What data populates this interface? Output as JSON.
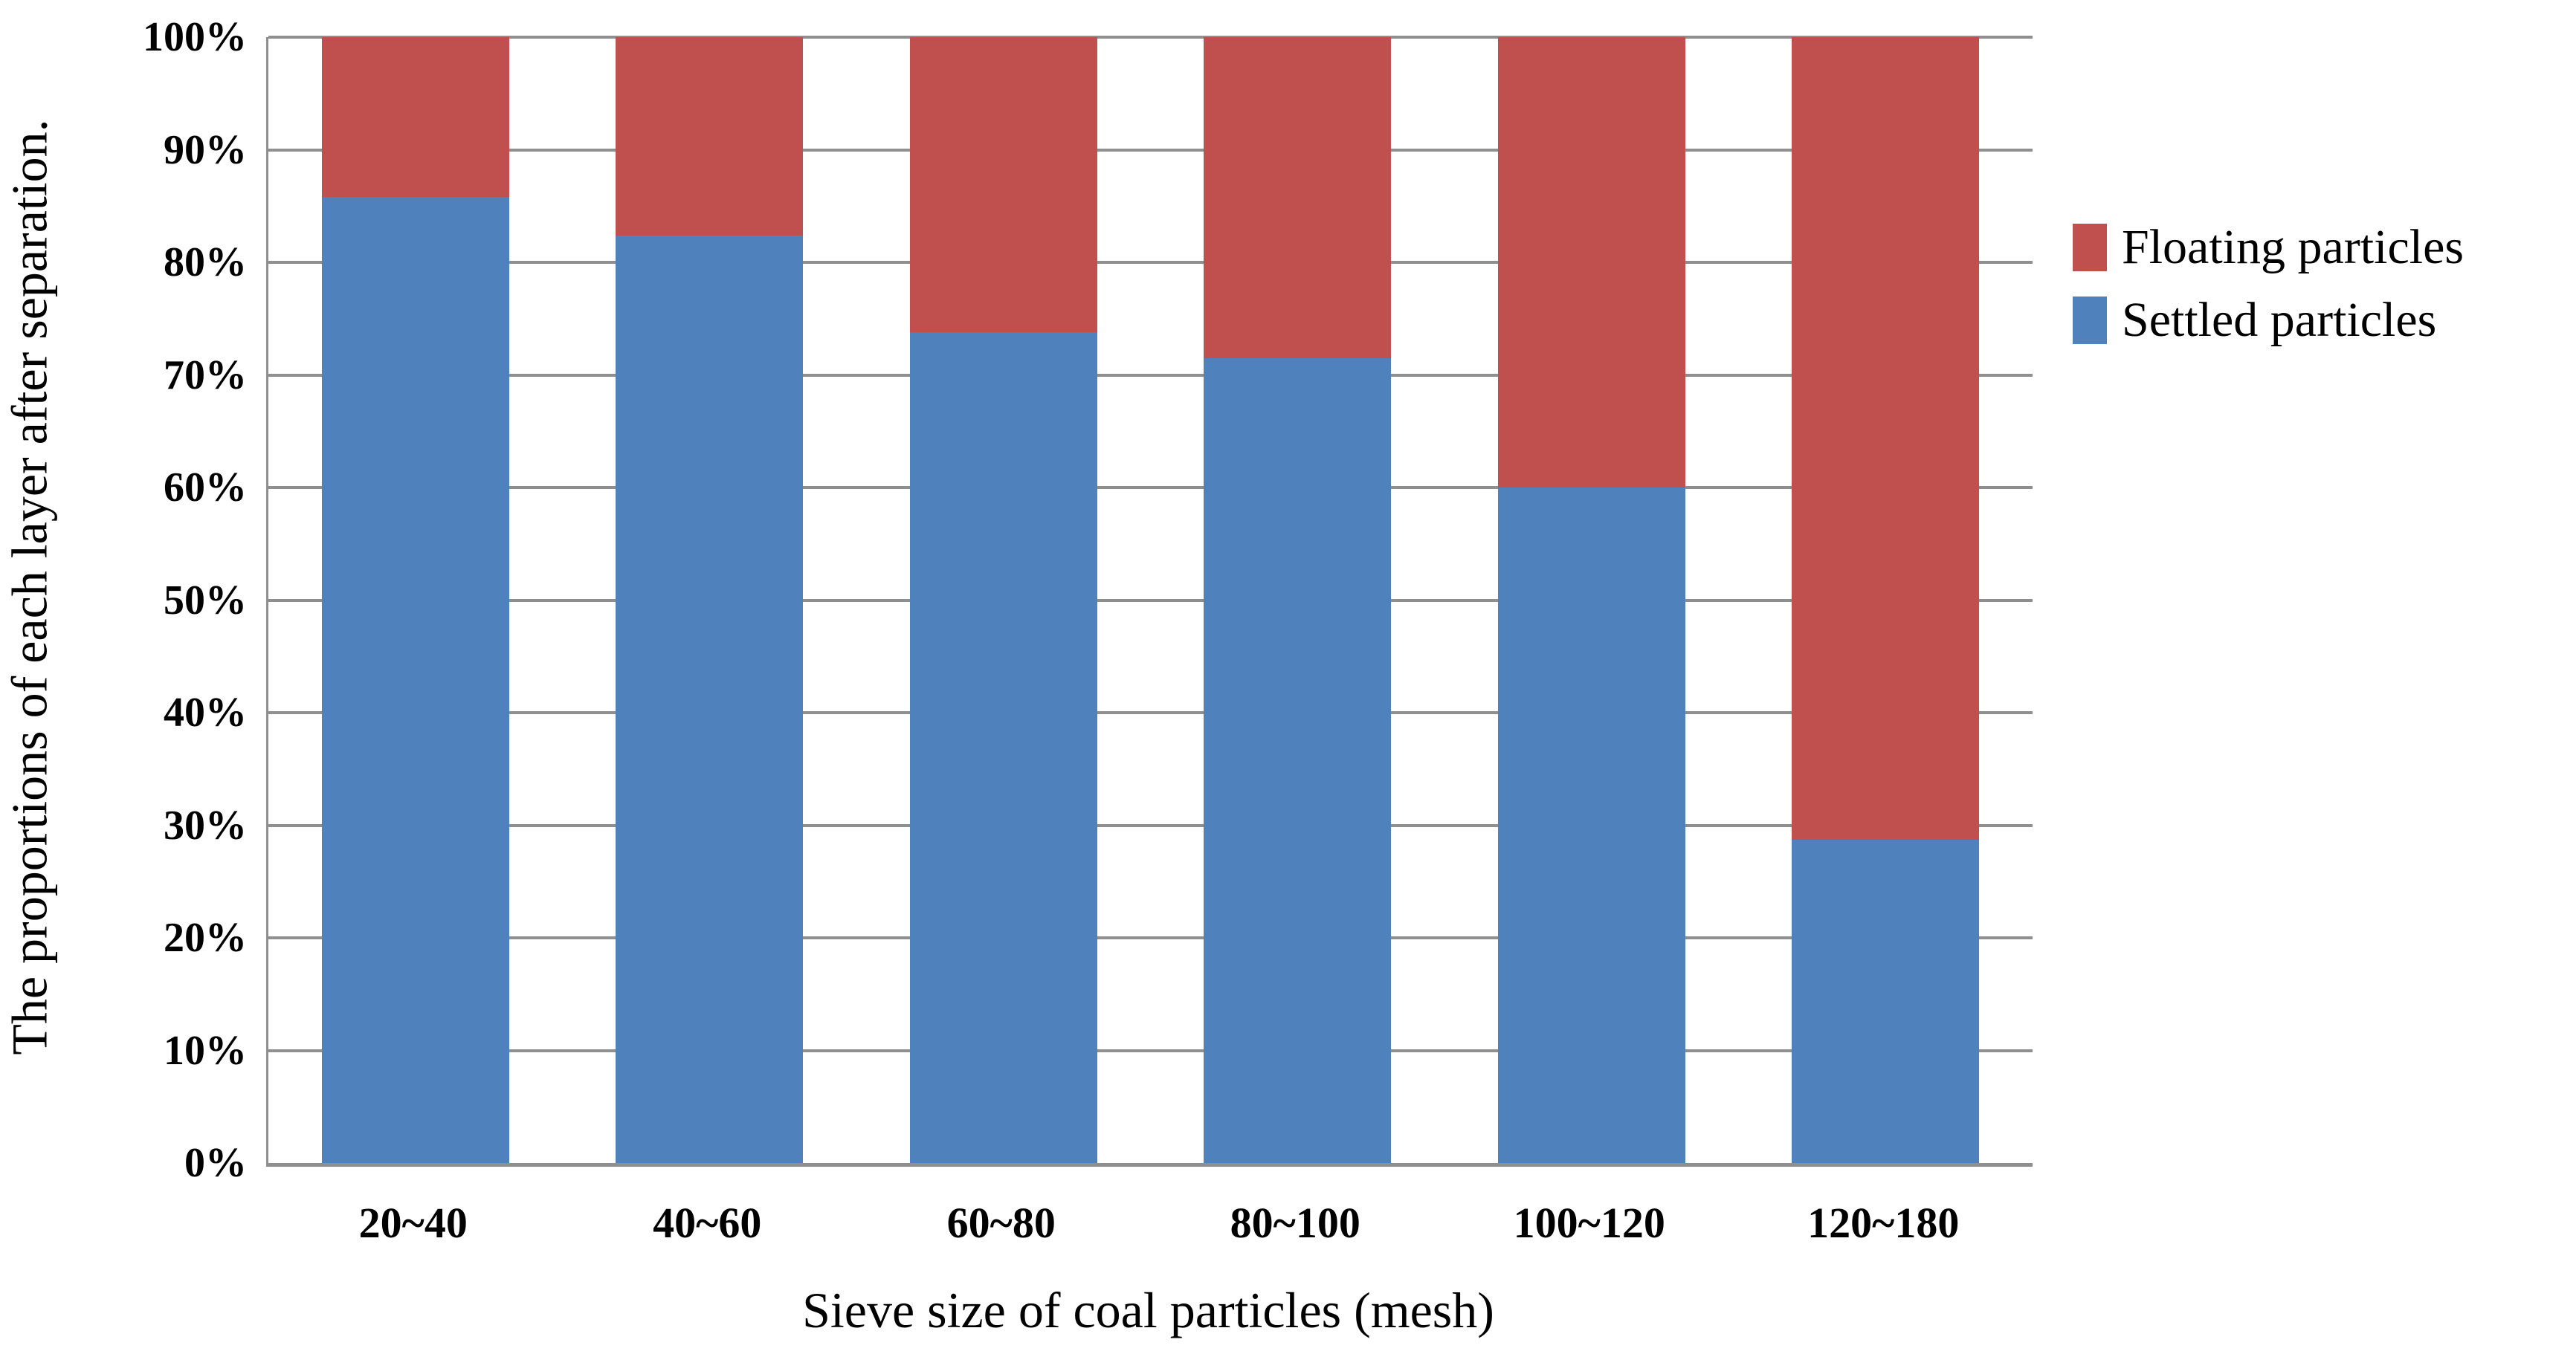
{
  "chart_data": {
    "type": "bar",
    "subtype": "stacked-100",
    "categories": [
      "20~40",
      "40~60",
      "60~80",
      "80~100",
      "100~120",
      "120~180"
    ],
    "series": [
      {
        "name": "Settled particles",
        "color": "#4F81BD",
        "values": [
          85.8,
          82.4,
          73.8,
          71.5,
          60.0,
          28.7
        ]
      },
      {
        "name": "Floating particles",
        "color": "#C0504D",
        "values": [
          14.2,
          17.6,
          26.2,
          28.5,
          40.0,
          71.3
        ]
      }
    ],
    "stack_order_bottom_to_top": [
      "Settled particles",
      "Floating particles"
    ],
    "title": "",
    "xlabel": "Sieve size of coal particles (mesh)",
    "ylabel": "The proportions of each layer after separation.",
    "ylim": [
      0,
      100
    ],
    "y_tick_step": 10,
    "y_ticks": [
      "0%",
      "10%",
      "20%",
      "30%",
      "40%",
      "50%",
      "60%",
      "70%",
      "80%",
      "90%",
      "100%"
    ],
    "grid": "horizontal",
    "legend": {
      "position": "right",
      "items": [
        {
          "label": "Floating particles",
          "color": "#C0504D"
        },
        {
          "label": "Settled particles",
          "color": "#4F81BD"
        }
      ]
    },
    "colors": {
      "gridline": "#8f8f8f",
      "axis_line": "#8f8f8f",
      "background": "#ffffff"
    }
  }
}
